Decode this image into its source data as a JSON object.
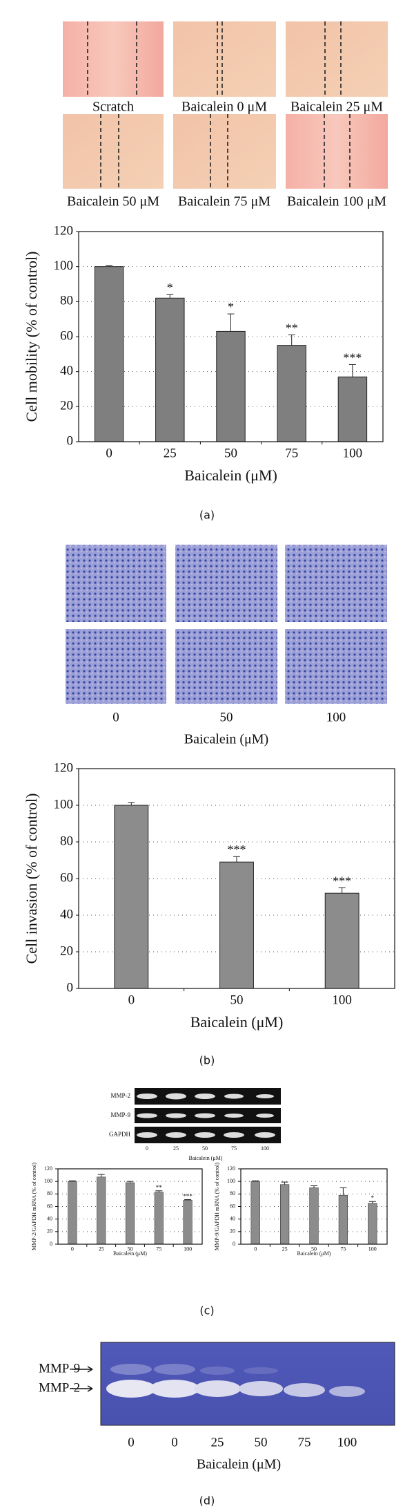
{
  "scratch_images": {
    "labels": [
      "Scratch",
      "Baicalein 0 μM",
      "Baicalein 25 μM",
      "Baicalein 50 μM",
      "Baicalein 75 μM",
      "Baicalein 100 μM"
    ]
  },
  "invasion_images": {
    "labels": [
      "0",
      "50",
      "100"
    ],
    "xlabel": "Baicalein (μM)"
  },
  "blot": {
    "rows": [
      "MMP-2",
      "MMP-9",
      "GAPDH"
    ],
    "lanes": [
      "0",
      "25",
      "50",
      "75",
      "100"
    ],
    "xlabel": "Baicalein (μM)"
  },
  "zymography": {
    "rows": [
      "MMP-9",
      "MMP-2"
    ],
    "lanes": [
      "0",
      "0",
      "25",
      "50",
      "75",
      "100"
    ],
    "xlabel": "Baicalein (μM)"
  },
  "panel_labels": [
    "(a)",
    "(b)",
    "(c)",
    "(d)"
  ],
  "chart_data": [
    {
      "type": "bar",
      "categories": [
        "0",
        "25",
        "50",
        "75",
        "100"
      ],
      "values": [
        100,
        82,
        63,
        55,
        37
      ],
      "errors": [
        0.5,
        2,
        10,
        6,
        7
      ],
      "annotations": [
        null,
        "*",
        "*",
        "**",
        "***"
      ],
      "xlabel": "Baicalein (μM)",
      "ylabel": "Cell mobility (% of control)",
      "ylim": [
        0,
        120
      ],
      "yticks": [
        0,
        20,
        40,
        60,
        80,
        100,
        120
      ],
      "grid": true,
      "color": "#7f7f7f"
    },
    {
      "type": "bar",
      "categories": [
        "0",
        "50",
        "100"
      ],
      "values": [
        100,
        69,
        52
      ],
      "errors": [
        1.5,
        3,
        3
      ],
      "annotations": [
        null,
        "***",
        "***"
      ],
      "xlabel": "Baicalein (μM)",
      "ylabel": "Cell invasion (% of control)",
      "ylim": [
        0,
        120
      ],
      "yticks": [
        0,
        20,
        40,
        60,
        80,
        100,
        120
      ],
      "grid": true,
      "color": "#8c8c8c"
    },
    {
      "type": "bar",
      "categories": [
        "0",
        "25",
        "50",
        "75",
        "100"
      ],
      "values": [
        100,
        107,
        98,
        83,
        70
      ],
      "errors": [
        1,
        4,
        2,
        2,
        1
      ],
      "annotations": [
        null,
        null,
        null,
        "**",
        "***"
      ],
      "xlabel": "Baicalein (μM)",
      "ylabel": "MMP-2/GAPDH mRNA (% of control)",
      "ylim": [
        0,
        120
      ],
      "yticks": [
        0,
        20,
        40,
        60,
        80,
        100,
        120
      ],
      "grid": true,
      "color": "#8c8c8c"
    },
    {
      "type": "bar",
      "categories": [
        "0",
        "25",
        "50",
        "75",
        "100"
      ],
      "values": [
        100,
        95,
        90,
        78,
        65
      ],
      "errors": [
        1,
        4,
        3,
        12,
        3
      ],
      "annotations": [
        null,
        null,
        null,
        null,
        "*"
      ],
      "xlabel": "Baicalein (μM)",
      "ylabel": "MMP-9/GAPDH mRNA (% of control)",
      "ylim": [
        0,
        120
      ],
      "yticks": [
        0,
        20,
        40,
        60,
        80,
        100,
        120
      ],
      "grid": true,
      "color": "#8c8c8c"
    }
  ]
}
